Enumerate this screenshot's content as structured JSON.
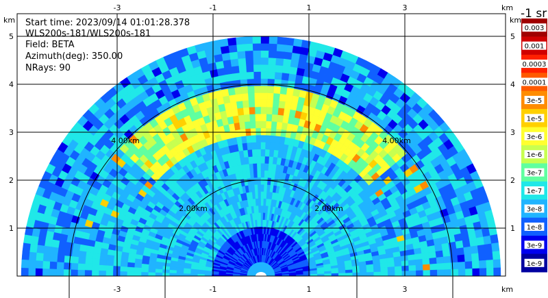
{
  "chart_data": {
    "type": "heatmap",
    "subtype": "radar-rhi-ppi-polar",
    "info_lines": [
      "Start time: 2023/09/14 01:01:28.378",
      "WLS200s-181/WLS200s-181",
      "Field: BETA",
      "Azimuth(deg): 350.00",
      "NRays: 90"
    ],
    "x_ticks": [
      "-3",
      "-1",
      "1",
      "3"
    ],
    "x_tick_values": [
      -3,
      -1,
      1,
      3
    ],
    "y_ticks": [
      "1",
      "2",
      "3",
      "4",
      "5"
    ],
    "y_tick_values": [
      1,
      2,
      3,
      4,
      5
    ],
    "xlim": [
      -5.2,
      5.0
    ],
    "ylim": [
      0,
      5.95
    ],
    "x_unit": "km",
    "y_unit": "km",
    "grid": true,
    "range_rings": [
      {
        "radius_km": 2.0,
        "label": "2.00km"
      },
      {
        "radius_km": 4.0,
        "label": "4.00km"
      }
    ],
    "max_range_km": 5.0,
    "colorbar": {
      "title": "-1 sr",
      "labels": [
        "0.003",
        "0.001",
        "0.0003",
        "0.0001",
        "3e-5",
        "1e-5",
        "3e-6",
        "1e-6",
        "3e-7",
        "1e-7",
        "3e-8",
        "1e-8",
        "3e-9",
        "1e-9"
      ],
      "colors": [
        "#a00000",
        "#d00000",
        "#ff2000",
        "#ff5a00",
        "#ff8c00",
        "#ffd000",
        "#ffff30",
        "#c8ff50",
        "#60ffa0",
        "#20e8e8",
        "#20b4ff",
        "#1060ff",
        "#0000ee",
        "#0000a0"
      ]
    },
    "field_features": [
      {
        "name": "background",
        "level": "3e-7"
      },
      {
        "name": "enhanced-layer",
        "level": "1e-5",
        "range_km": [
          3.1,
          3.8
        ]
      },
      {
        "name": "weak-near-field",
        "level": "3e-8"
      }
    ]
  }
}
